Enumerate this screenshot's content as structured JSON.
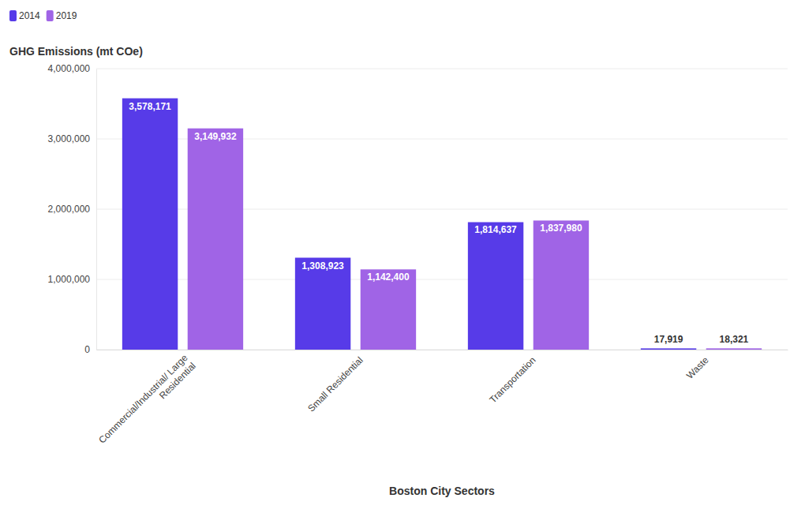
{
  "chart_data": {
    "type": "bar",
    "y_label": "GHG Emissions (mt COe)",
    "x_label": "Boston City Sectors",
    "categories": [
      "Commercial/Industrial/ Large Residential",
      "Small Residential",
      "Transportation",
      "Waste"
    ],
    "series": [
      {
        "name": "2014",
        "color": "#573be8",
        "values": [
          3578171,
          1308923,
          1814637,
          17919
        ],
        "value_labels": [
          "3,578,171",
          "1,308,923",
          "1,814,637",
          "17,919"
        ]
      },
      {
        "name": "2019",
        "color": "#a064e6",
        "values": [
          3149932,
          1142400,
          1837980,
          18321
        ],
        "value_labels": [
          "3,149,932",
          "1,142,400",
          "1,837,980",
          "18,321"
        ]
      }
    ],
    "ylim": [
      0,
      4000000
    ],
    "yticks": [
      0,
      {
        "value": 1000000,
        "label": "1,000,000"
      },
      {
        "value": 2000000,
        "label": "2,000,000"
      },
      {
        "value": 3000000,
        "label": "3,000,000"
      },
      {
        "value": 4000000,
        "label": "4,000,000"
      }
    ],
    "grid": true,
    "legend": "top-left",
    "data_labels": true
  }
}
